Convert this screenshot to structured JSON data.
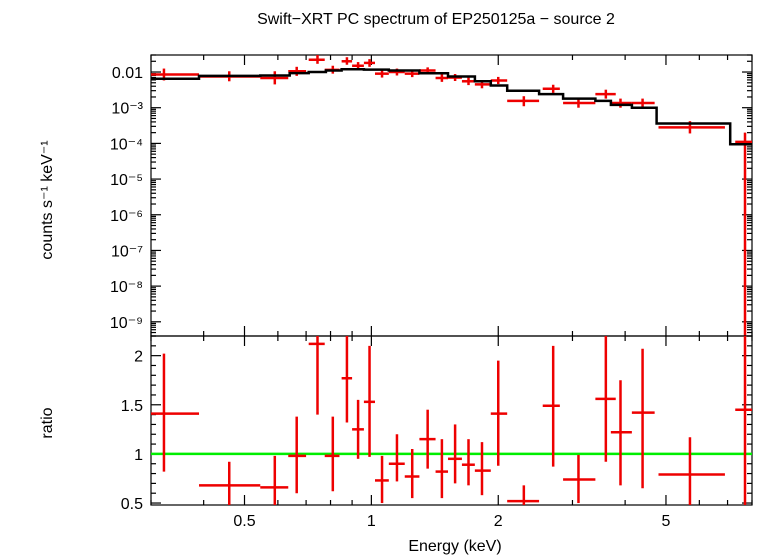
{
  "chart_data": {
    "type": "scatter",
    "title": "Swift−XRT PC spectrum of EP250125a − source 2",
    "xlabel": "Energy (keV)",
    "x_scale": "log",
    "xlim": [
      0.3,
      8.0
    ],
    "x_ticks": [
      {
        "value": 0.5,
        "label": "0.5"
      },
      {
        "value": 1,
        "label": "1"
      },
      {
        "value": 2,
        "label": "2"
      },
      {
        "value": 5,
        "label": "5"
      }
    ],
    "colors": {
      "data": "#ee0000",
      "model": "#000000",
      "unity": "#00ee00",
      "axes": "#000000"
    },
    "panels": [
      {
        "name": "spectrum",
        "ylabel": "counts s⁻¹ keV⁻¹",
        "y_scale": "log",
        "ylim": [
          4e-10,
          0.03
        ],
        "y_ticks": [
          {
            "value": 0.01,
            "label": "0.01"
          },
          {
            "value": 0.001,
            "label": "10⁻³"
          },
          {
            "value": 0.0001,
            "label": "10⁻⁴"
          },
          {
            "value": 1e-05,
            "label": "10⁻⁵"
          },
          {
            "value": 1e-06,
            "label": "10⁻⁶"
          },
          {
            "value": 1e-07,
            "label": "10⁻⁷"
          },
          {
            "value": 1e-08,
            "label": "10⁻⁸"
          },
          {
            "value": 1e-09,
            "label": "10⁻⁹"
          }
        ],
        "series": [
          {
            "name": "data",
            "color": "#ee0000",
            "points": [
              {
                "x": 0.322,
                "xlo": 0.3,
                "xhi": 0.39,
                "y": 0.0085,
                "ylo": 0.0058,
                "yhi": 0.0125
              },
              {
                "x": 0.46,
                "xlo": 0.39,
                "xhi": 0.545,
                "y": 0.0075,
                "ylo": 0.0055,
                "yhi": 0.0105
              },
              {
                "x": 0.59,
                "xlo": 0.545,
                "xhi": 0.635,
                "y": 0.0068,
                "ylo": 0.0045,
                "yhi": 0.0105
              },
              {
                "x": 0.665,
                "xlo": 0.635,
                "xhi": 0.7,
                "y": 0.0105,
                "ylo": 0.0078,
                "yhi": 0.014
              },
              {
                "x": 0.745,
                "xlo": 0.71,
                "xhi": 0.775,
                "y": 0.022,
                "ylo": 0.017,
                "yhi": 0.03
              },
              {
                "x": 0.81,
                "xlo": 0.775,
                "xhi": 0.84,
                "y": 0.0115,
                "ylo": 0.009,
                "yhi": 0.015
              },
              {
                "x": 0.875,
                "xlo": 0.85,
                "xhi": 0.9,
                "y": 0.02,
                "ylo": 0.016,
                "yhi": 0.026
              },
              {
                "x": 0.93,
                "xlo": 0.9,
                "xhi": 0.96,
                "y": 0.015,
                "ylo": 0.0118,
                "yhi": 0.019
              },
              {
                "x": 0.99,
                "xlo": 0.96,
                "xhi": 1.02,
                "y": 0.018,
                "ylo": 0.014,
                "yhi": 0.023
              },
              {
                "x": 1.06,
                "xlo": 1.02,
                "xhi": 1.1,
                "y": 0.009,
                "ylo": 0.007,
                "yhi": 0.0115
              },
              {
                "x": 1.15,
                "xlo": 1.1,
                "xhi": 1.2,
                "y": 0.01,
                "ylo": 0.008,
                "yhi": 0.0125
              },
              {
                "x": 1.25,
                "xlo": 1.2,
                "xhi": 1.3,
                "y": 0.009,
                "ylo": 0.0072,
                "yhi": 0.0112
              },
              {
                "x": 1.36,
                "xlo": 1.3,
                "xhi": 1.42,
                "y": 0.011,
                "ylo": 0.009,
                "yhi": 0.0135
              },
              {
                "x": 1.47,
                "xlo": 1.42,
                "xhi": 1.52,
                "y": 0.0068,
                "ylo": 0.0053,
                "yhi": 0.0087
              },
              {
                "x": 1.58,
                "xlo": 1.52,
                "xhi": 1.64,
                "y": 0.007,
                "ylo": 0.0056,
                "yhi": 0.0088
              },
              {
                "x": 1.7,
                "xlo": 1.64,
                "xhi": 1.76,
                "y": 0.0055,
                "ylo": 0.0043,
                "yhi": 0.007
              },
              {
                "x": 1.83,
                "xlo": 1.76,
                "xhi": 1.92,
                "y": 0.0045,
                "ylo": 0.0035,
                "yhi": 0.0058
              },
              {
                "x": 2.0,
                "xlo": 1.92,
                "xhi": 2.1,
                "y": 0.0058,
                "ylo": 0.0046,
                "yhi": 0.0073
              },
              {
                "x": 2.3,
                "xlo": 2.1,
                "xhi": 2.5,
                "y": 0.00155,
                "ylo": 0.0011,
                "yhi": 0.0021
              },
              {
                "x": 2.7,
                "xlo": 2.55,
                "xhi": 2.8,
                "y": 0.0034,
                "ylo": 0.0026,
                "yhi": 0.0044
              },
              {
                "x": 3.1,
                "xlo": 2.85,
                "xhi": 3.4,
                "y": 0.00135,
                "ylo": 0.001,
                "yhi": 0.0018
              },
              {
                "x": 3.6,
                "xlo": 3.4,
                "xhi": 3.8,
                "y": 0.0024,
                "ylo": 0.0018,
                "yhi": 0.0032
              },
              {
                "x": 3.9,
                "xlo": 3.7,
                "xhi": 4.15,
                "y": 0.00135,
                "ylo": 0.001,
                "yhi": 0.0018
              },
              {
                "x": 4.4,
                "xlo": 4.15,
                "xhi": 4.7,
                "y": 0.00135,
                "ylo": 0.001,
                "yhi": 0.0018
              },
              {
                "x": 5.7,
                "xlo": 4.8,
                "xhi": 6.9,
                "y": 0.00028,
                "ylo": 0.00019,
                "yhi": 0.00042
              },
              {
                "x": 7.7,
                "xlo": 7.3,
                "xhi": 8.0,
                "y": 0.00011,
                "ylo": 4e-10,
                "yhi": 0.0002
              }
            ]
          },
          {
            "name": "model",
            "color": "#000000",
            "steps": [
              {
                "x0": 0.3,
                "x1": 0.39,
                "y": 0.0065
              },
              {
                "x0": 0.39,
                "x1": 0.545,
                "y": 0.0078
              },
              {
                "x0": 0.545,
                "x1": 0.64,
                "y": 0.008
              },
              {
                "x0": 0.64,
                "x1": 0.71,
                "y": 0.0093
              },
              {
                "x0": 0.71,
                "x1": 0.78,
                "y": 0.01
              },
              {
                "x0": 0.78,
                "x1": 0.85,
                "y": 0.011
              },
              {
                "x0": 0.85,
                "x1": 0.96,
                "y": 0.012
              },
              {
                "x0": 0.96,
                "x1": 1.1,
                "y": 0.0117
              },
              {
                "x0": 1.1,
                "x1": 1.3,
                "y": 0.011
              },
              {
                "x0": 1.3,
                "x1": 1.52,
                "y": 0.0092
              },
              {
                "x0": 1.52,
                "x1": 1.76,
                "y": 0.0075
              },
              {
                "x0": 1.76,
                "x1": 1.92,
                "y": 0.0055
              },
              {
                "x0": 1.92,
                "x1": 2.1,
                "y": 0.0042
              },
              {
                "x0": 2.1,
                "x1": 2.5,
                "y": 0.003
              },
              {
                "x0": 2.5,
                "x1": 2.85,
                "y": 0.0024
              },
              {
                "x0": 2.85,
                "x1": 3.4,
                "y": 0.0018
              },
              {
                "x0": 3.4,
                "x1": 3.7,
                "y": 0.00155
              },
              {
                "x0": 3.7,
                "x1": 4.15,
                "y": 0.0012
              },
              {
                "x0": 4.15,
                "x1": 4.75,
                "y": 0.001
              },
              {
                "x0": 4.75,
                "x1": 7.1,
                "y": 0.00036
              },
              {
                "x0": 7.1,
                "x1": 8.0,
                "y": 9.5e-05
              }
            ]
          }
        ]
      },
      {
        "name": "ratio",
        "ylabel": "ratio",
        "y_scale": "linear",
        "ylim": [
          0.48,
          2.2
        ],
        "y_ticks": [
          {
            "value": 0.5,
            "label": "0.5"
          },
          {
            "value": 1,
            "label": "1"
          },
          {
            "value": 1.5,
            "label": "1.5"
          },
          {
            "value": 2,
            "label": "2"
          }
        ],
        "reference_line": {
          "y": 1,
          "color": "#00ee00"
        },
        "series": [
          {
            "name": "data/model",
            "color": "#ee0000",
            "points": [
              {
                "x": 0.322,
                "xlo": 0.3,
                "xhi": 0.39,
                "y": 1.41,
                "ylo": 0.82,
                "yhi": 2.02
              },
              {
                "x": 0.46,
                "xlo": 0.39,
                "xhi": 0.545,
                "y": 0.68,
                "ylo": 0.48,
                "yhi": 0.92
              },
              {
                "x": 0.59,
                "xlo": 0.545,
                "xhi": 0.635,
                "y": 0.66,
                "ylo": 0.48,
                "yhi": 0.98
              },
              {
                "x": 0.665,
                "xlo": 0.635,
                "xhi": 0.7,
                "y": 0.98,
                "ylo": 0.6,
                "yhi": 1.38
              },
              {
                "x": 0.745,
                "xlo": 0.71,
                "xhi": 0.775,
                "y": 2.12,
                "ylo": 1.4,
                "yhi": 2.2
              },
              {
                "x": 0.81,
                "xlo": 0.775,
                "xhi": 0.84,
                "y": 0.98,
                "ylo": 0.62,
                "yhi": 1.38
              },
              {
                "x": 0.875,
                "xlo": 0.85,
                "xhi": 0.9,
                "y": 1.77,
                "ylo": 1.32,
                "yhi": 2.2
              },
              {
                "x": 0.93,
                "xlo": 0.9,
                "xhi": 0.96,
                "y": 1.25,
                "ylo": 0.95,
                "yhi": 1.55
              },
              {
                "x": 0.99,
                "xlo": 0.96,
                "xhi": 1.02,
                "y": 1.53,
                "ylo": 0.97,
                "yhi": 2.1
              },
              {
                "x": 1.06,
                "xlo": 1.02,
                "xhi": 1.1,
                "y": 0.73,
                "ylo": 0.5,
                "yhi": 0.98
              },
              {
                "x": 1.15,
                "xlo": 1.1,
                "xhi": 1.2,
                "y": 0.9,
                "ylo": 0.72,
                "yhi": 1.2
              },
              {
                "x": 1.25,
                "xlo": 1.2,
                "xhi": 1.3,
                "y": 0.77,
                "ylo": 0.55,
                "yhi": 1.05
              },
              {
                "x": 1.36,
                "xlo": 1.3,
                "xhi": 1.42,
                "y": 1.15,
                "ylo": 0.85,
                "yhi": 1.45
              },
              {
                "x": 1.47,
                "xlo": 1.42,
                "xhi": 1.52,
                "y": 0.82,
                "ylo": 0.55,
                "yhi": 1.15
              },
              {
                "x": 1.58,
                "xlo": 1.52,
                "xhi": 1.64,
                "y": 0.95,
                "ylo": 0.7,
                "yhi": 1.3
              },
              {
                "x": 1.7,
                "xlo": 1.64,
                "xhi": 1.76,
                "y": 0.89,
                "ylo": 0.68,
                "yhi": 1.15
              },
              {
                "x": 1.83,
                "xlo": 1.76,
                "xhi": 1.92,
                "y": 0.83,
                "ylo": 0.58,
                "yhi": 1.12
              },
              {
                "x": 2.0,
                "xlo": 1.92,
                "xhi": 2.1,
                "y": 1.41,
                "ylo": 0.88,
                "yhi": 1.95
              },
              {
                "x": 2.3,
                "xlo": 2.1,
                "xhi": 2.5,
                "y": 0.52,
                "ylo": 0.48,
                "yhi": 0.68
              },
              {
                "x": 2.7,
                "xlo": 2.55,
                "xhi": 2.8,
                "y": 1.49,
                "ylo": 0.87,
                "yhi": 2.1
              },
              {
                "x": 3.1,
                "xlo": 2.85,
                "xhi": 3.4,
                "y": 0.74,
                "ylo": 0.5,
                "yhi": 0.99
              },
              {
                "x": 3.6,
                "xlo": 3.4,
                "xhi": 3.8,
                "y": 1.56,
                "ylo": 0.92,
                "yhi": 2.2
              },
              {
                "x": 3.9,
                "xlo": 3.7,
                "xhi": 4.15,
                "y": 1.22,
                "ylo": 0.68,
                "yhi": 1.75
              },
              {
                "x": 4.4,
                "xlo": 4.15,
                "xhi": 4.7,
                "y": 1.42,
                "ylo": 0.65,
                "yhi": 2.07
              },
              {
                "x": 5.7,
                "xlo": 4.8,
                "xhi": 6.9,
                "y": 0.79,
                "ylo": 0.48,
                "yhi": 1.17
              },
              {
                "x": 7.7,
                "xlo": 7.3,
                "xhi": 8.0,
                "y": 1.45,
                "ylo": 0.48,
                "yhi": 2.2
              }
            ]
          }
        ]
      }
    ]
  }
}
